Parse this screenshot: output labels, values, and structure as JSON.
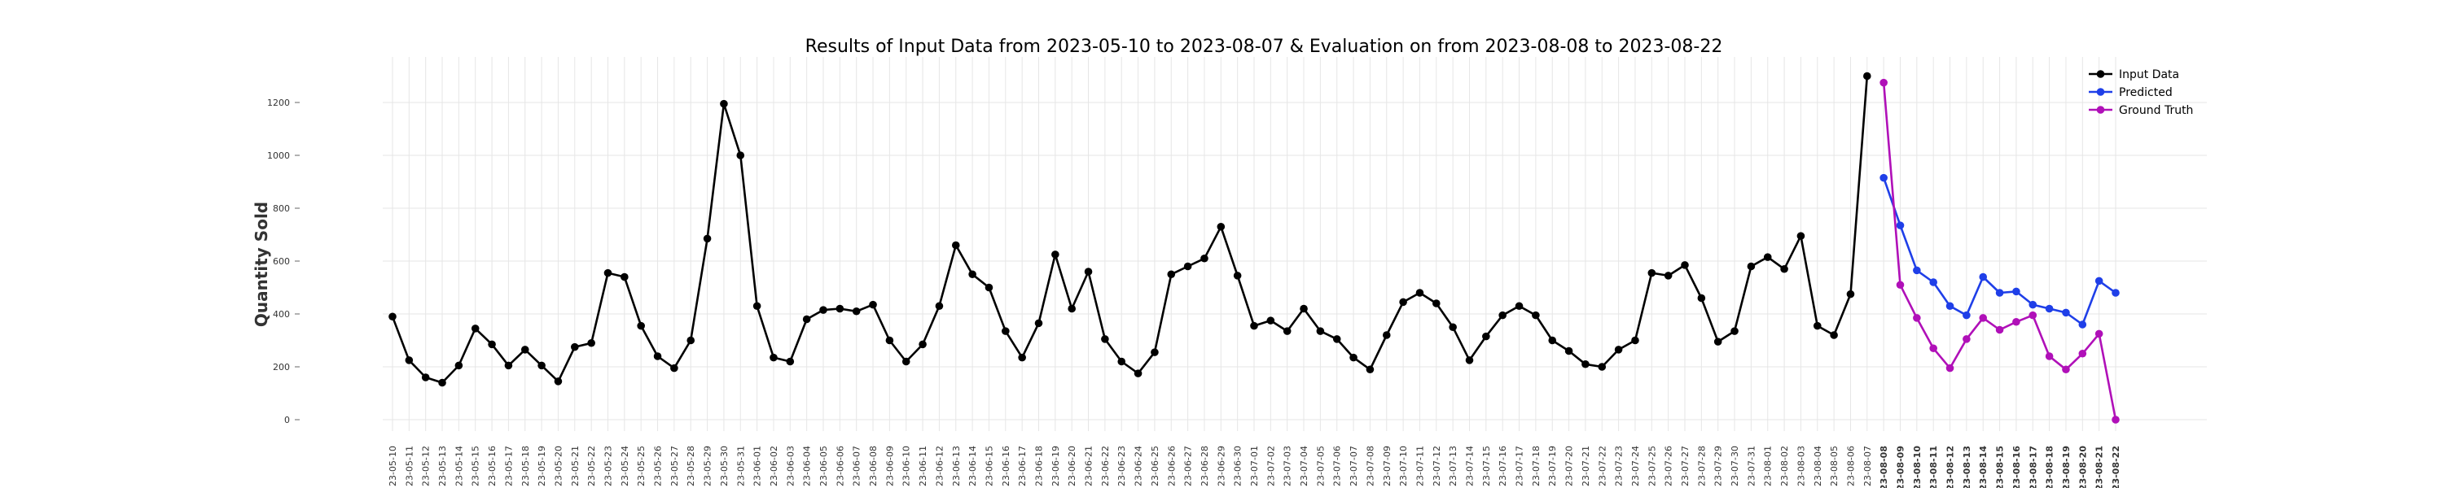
{
  "chart_data": {
    "type": "line",
    "title": "Results of Input Data from 2023-05-10 to 2023-08-07 & Evaluation on from 2023-08-08 to 2023-08-22",
    "xlabel": "",
    "ylabel": "Quantity Sold",
    "ylim": [
      0,
      1300
    ],
    "yticks": [
      0,
      200,
      400,
      600,
      800,
      1000,
      1200
    ],
    "grid": true,
    "legend_position": "top-right",
    "x_start": "2023-05-10",
    "x_end": "2023-08-22",
    "tick_prefix": "20",
    "series": [
      {
        "name": "Input Data",
        "color": "#000000",
        "x": [
          "2023-05-10",
          "2023-05-11",
          "2023-05-12",
          "2023-05-13",
          "2023-05-14",
          "2023-05-15",
          "2023-05-16",
          "2023-05-17",
          "2023-05-18",
          "2023-05-19",
          "2023-05-20",
          "2023-05-21",
          "2023-05-22",
          "2023-05-23",
          "2023-05-24",
          "2023-05-25",
          "2023-05-26",
          "2023-05-27",
          "2023-05-28",
          "2023-05-29",
          "2023-05-30",
          "2023-05-31",
          "2023-06-01",
          "2023-06-02",
          "2023-06-03",
          "2023-06-04",
          "2023-06-05",
          "2023-06-06",
          "2023-06-07",
          "2023-06-08",
          "2023-06-09",
          "2023-06-10",
          "2023-06-11",
          "2023-06-12",
          "2023-06-13",
          "2023-06-14",
          "2023-06-15",
          "2023-06-16",
          "2023-06-17",
          "2023-06-18",
          "2023-06-19",
          "2023-06-20",
          "2023-06-21",
          "2023-06-22",
          "2023-06-23",
          "2023-06-24",
          "2023-06-25",
          "2023-06-26",
          "2023-06-27",
          "2023-06-28",
          "2023-06-29",
          "2023-06-30",
          "2023-07-01",
          "2023-07-02",
          "2023-07-03",
          "2023-07-04",
          "2023-07-05",
          "2023-07-06",
          "2023-07-07",
          "2023-07-08",
          "2023-07-09",
          "2023-07-10",
          "2023-07-11",
          "2023-07-12",
          "2023-07-13",
          "2023-07-14",
          "2023-07-15",
          "2023-07-16",
          "2023-07-17",
          "2023-07-18",
          "2023-07-19",
          "2023-07-20",
          "2023-07-21",
          "2023-07-22",
          "2023-07-23",
          "2023-07-24",
          "2023-07-25",
          "2023-07-26",
          "2023-07-27",
          "2023-07-28",
          "2023-07-29",
          "2023-07-30",
          "2023-07-31",
          "2023-08-01",
          "2023-08-02",
          "2023-08-03",
          "2023-08-04",
          "2023-08-05",
          "2023-08-06",
          "2023-08-07"
        ],
        "values": [
          390,
          225,
          160,
          140,
          205,
          345,
          285,
          205,
          265,
          205,
          145,
          275,
          290,
          555,
          540,
          355,
          240,
          195,
          300,
          685,
          1195,
          1000,
          430,
          235,
          220,
          380,
          415,
          420,
          410,
          435,
          300,
          220,
          285,
          430,
          660,
          550,
          500,
          335,
          235,
          365,
          625,
          420,
          560,
          305,
          220,
          175,
          255,
          550,
          580,
          610,
          730,
          545,
          355,
          375,
          335,
          420,
          335,
          305,
          235,
          190,
          320,
          445,
          480,
          440,
          350,
          225,
          315,
          395,
          430,
          395,
          300,
          260,
          210,
          200,
          265,
          300,
          555,
          545,
          585,
          460,
          295,
          335,
          580,
          615,
          570,
          695,
          355,
          320,
          475,
          1300
        ]
      },
      {
        "name": "Predicted",
        "color": "#1f3fe8",
        "x": [
          "2023-08-08",
          "2023-08-09",
          "2023-08-10",
          "2023-08-11",
          "2023-08-12",
          "2023-08-13",
          "2023-08-14",
          "2023-08-15",
          "2023-08-16",
          "2023-08-17",
          "2023-08-18",
          "2023-08-19",
          "2023-08-20",
          "2023-08-21",
          "2023-08-22"
        ],
        "values": [
          915,
          735,
          565,
          520,
          430,
          395,
          540,
          480,
          485,
          435,
          420,
          405,
          360,
          525,
          480
        ]
      },
      {
        "name": "Ground Truth",
        "color": "#b010b8",
        "x": [
          "2023-08-08",
          "2023-08-09",
          "2023-08-10",
          "2023-08-11",
          "2023-08-12",
          "2023-08-13",
          "2023-08-14",
          "2023-08-15",
          "2023-08-16",
          "2023-08-17",
          "2023-08-18",
          "2023-08-19",
          "2023-08-20",
          "2023-08-21",
          "2023-08-22"
        ],
        "values": [
          1275,
          510,
          385,
          270,
          195,
          305,
          385,
          340,
          370,
          395,
          240,
          190,
          250,
          325,
          0
        ]
      }
    ]
  }
}
